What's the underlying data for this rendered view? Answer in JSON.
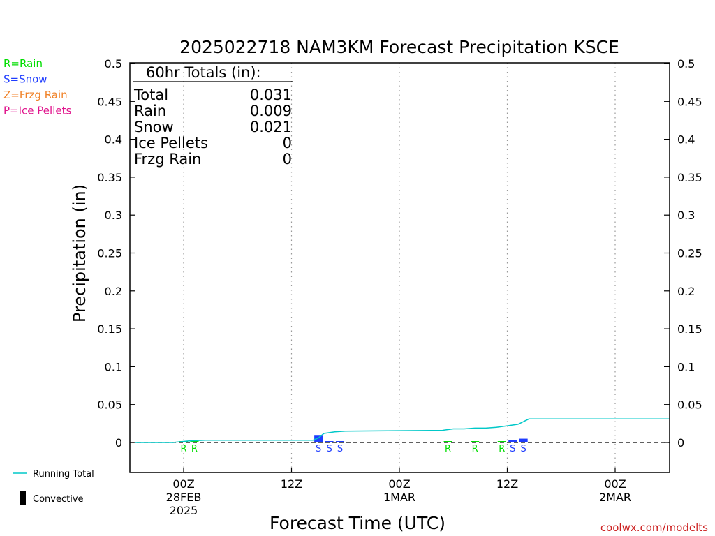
{
  "chart_data": {
    "type": "bar",
    "title": "2025022718 NAM3KM Forecast Precipitation KSCE",
    "xlabel": "Forecast Time (UTC)",
    "ylabel": "Precipitation (in)",
    "ylim": [
      -0.04,
      0.5
    ],
    "xlim": [
      -5,
      45
    ],
    "yticks": [
      "0.5",
      "0.45",
      "0.4",
      "0.35",
      "0.3",
      "0.25",
      "0.2",
      "0.15",
      "0.1",
      "0.05",
      "0"
    ],
    "x_ticks": [
      {
        "x": 0,
        "lines": [
          "00Z",
          "28FEB",
          "2025"
        ]
      },
      {
        "x": 10,
        "lines": [
          "12Z"
        ]
      },
      {
        "x": 20,
        "lines": [
          "00Z",
          "1MAR"
        ]
      },
      {
        "x": 30,
        "lines": [
          "12Z"
        ]
      },
      {
        "x": 40,
        "lines": [
          "00Z",
          "2MAR"
        ]
      }
    ],
    "x_units": "hours after 00Z 28FEB 2025 (tick every 12h)",
    "totals_box": {
      "heading": "60hr Totals (in):",
      "rows": [
        {
          "label": "Total",
          "value": "0.031"
        },
        {
          "label": "Rain",
          "value": "0.009"
        },
        {
          "label": "Snow",
          "value": "0.021"
        },
        {
          "label": "Ice Pellets",
          "value": "0"
        },
        {
          "label": "Frzg Rain",
          "value": "0"
        }
      ]
    },
    "type_legend": [
      {
        "text": "R=Rain",
        "color": "#00dd00"
      },
      {
        "text": "S=Snow",
        "color": "#1e3cff"
      },
      {
        "text": "Z=Frzg Rain",
        "color": "#f08228"
      },
      {
        "text": "P=Ice Pellets",
        "color": "#e0148c"
      }
    ],
    "series_legend": [
      {
        "text": "Running Total",
        "color": "#00c8c8",
        "kind": "line"
      },
      {
        "text": "Convective",
        "color": "#000000",
        "kind": "bar"
      }
    ],
    "bars": [
      {
        "x": 0.0,
        "value": 0.0015,
        "ptype": "R",
        "color": "#00dd00"
      },
      {
        "x": 1.0,
        "value": 0.0015,
        "ptype": "R",
        "color": "#00dd00"
      },
      {
        "x": 12.5,
        "value": 0.009,
        "ptype": "S",
        "color": "#1e3cff"
      },
      {
        "x": 13.5,
        "value": 0.0015,
        "ptype": "S",
        "color": "#1e3cff"
      },
      {
        "x": 14.5,
        "value": 0.0015,
        "ptype": "S",
        "color": "#1e3cff"
      },
      {
        "x": 24.5,
        "value": 0.001,
        "ptype": "R",
        "color": "#00dd00"
      },
      {
        "x": 27.0,
        "value": 0.0008,
        "ptype": "R",
        "color": "#00dd00"
      },
      {
        "x": 29.5,
        "value": 0.001,
        "ptype": "R",
        "color": "#00dd00"
      },
      {
        "x": 30.5,
        "value": 0.003,
        "ptype": "S",
        "color": "#1e3cff"
      },
      {
        "x": 31.5,
        "value": 0.005,
        "ptype": "S",
        "color": "#1e3cff"
      }
    ],
    "running_total": {
      "name": "Running Total",
      "color": "#00c8c8",
      "x": [
        -4.5,
        -1,
        0.5,
        2,
        12,
        12.5,
        13,
        14,
        15,
        24,
        24.5,
        25,
        26,
        27,
        28,
        29,
        30,
        31,
        32,
        45
      ],
      "values": [
        0,
        0,
        0.002,
        0.003,
        0.003,
        0.006,
        0.012,
        0.014,
        0.015,
        0.016,
        0.017,
        0.018,
        0.018,
        0.019,
        0.019,
        0.02,
        0.022,
        0.024,
        0.031,
        0.031
      ]
    },
    "zero_line": {
      "style": "dashed",
      "color": "#000000"
    },
    "grid": "vertical dotted at each x tick"
  },
  "footer": {
    "credit": "coolwx.com/modelts",
    "credit_color": "#cc2020"
  }
}
